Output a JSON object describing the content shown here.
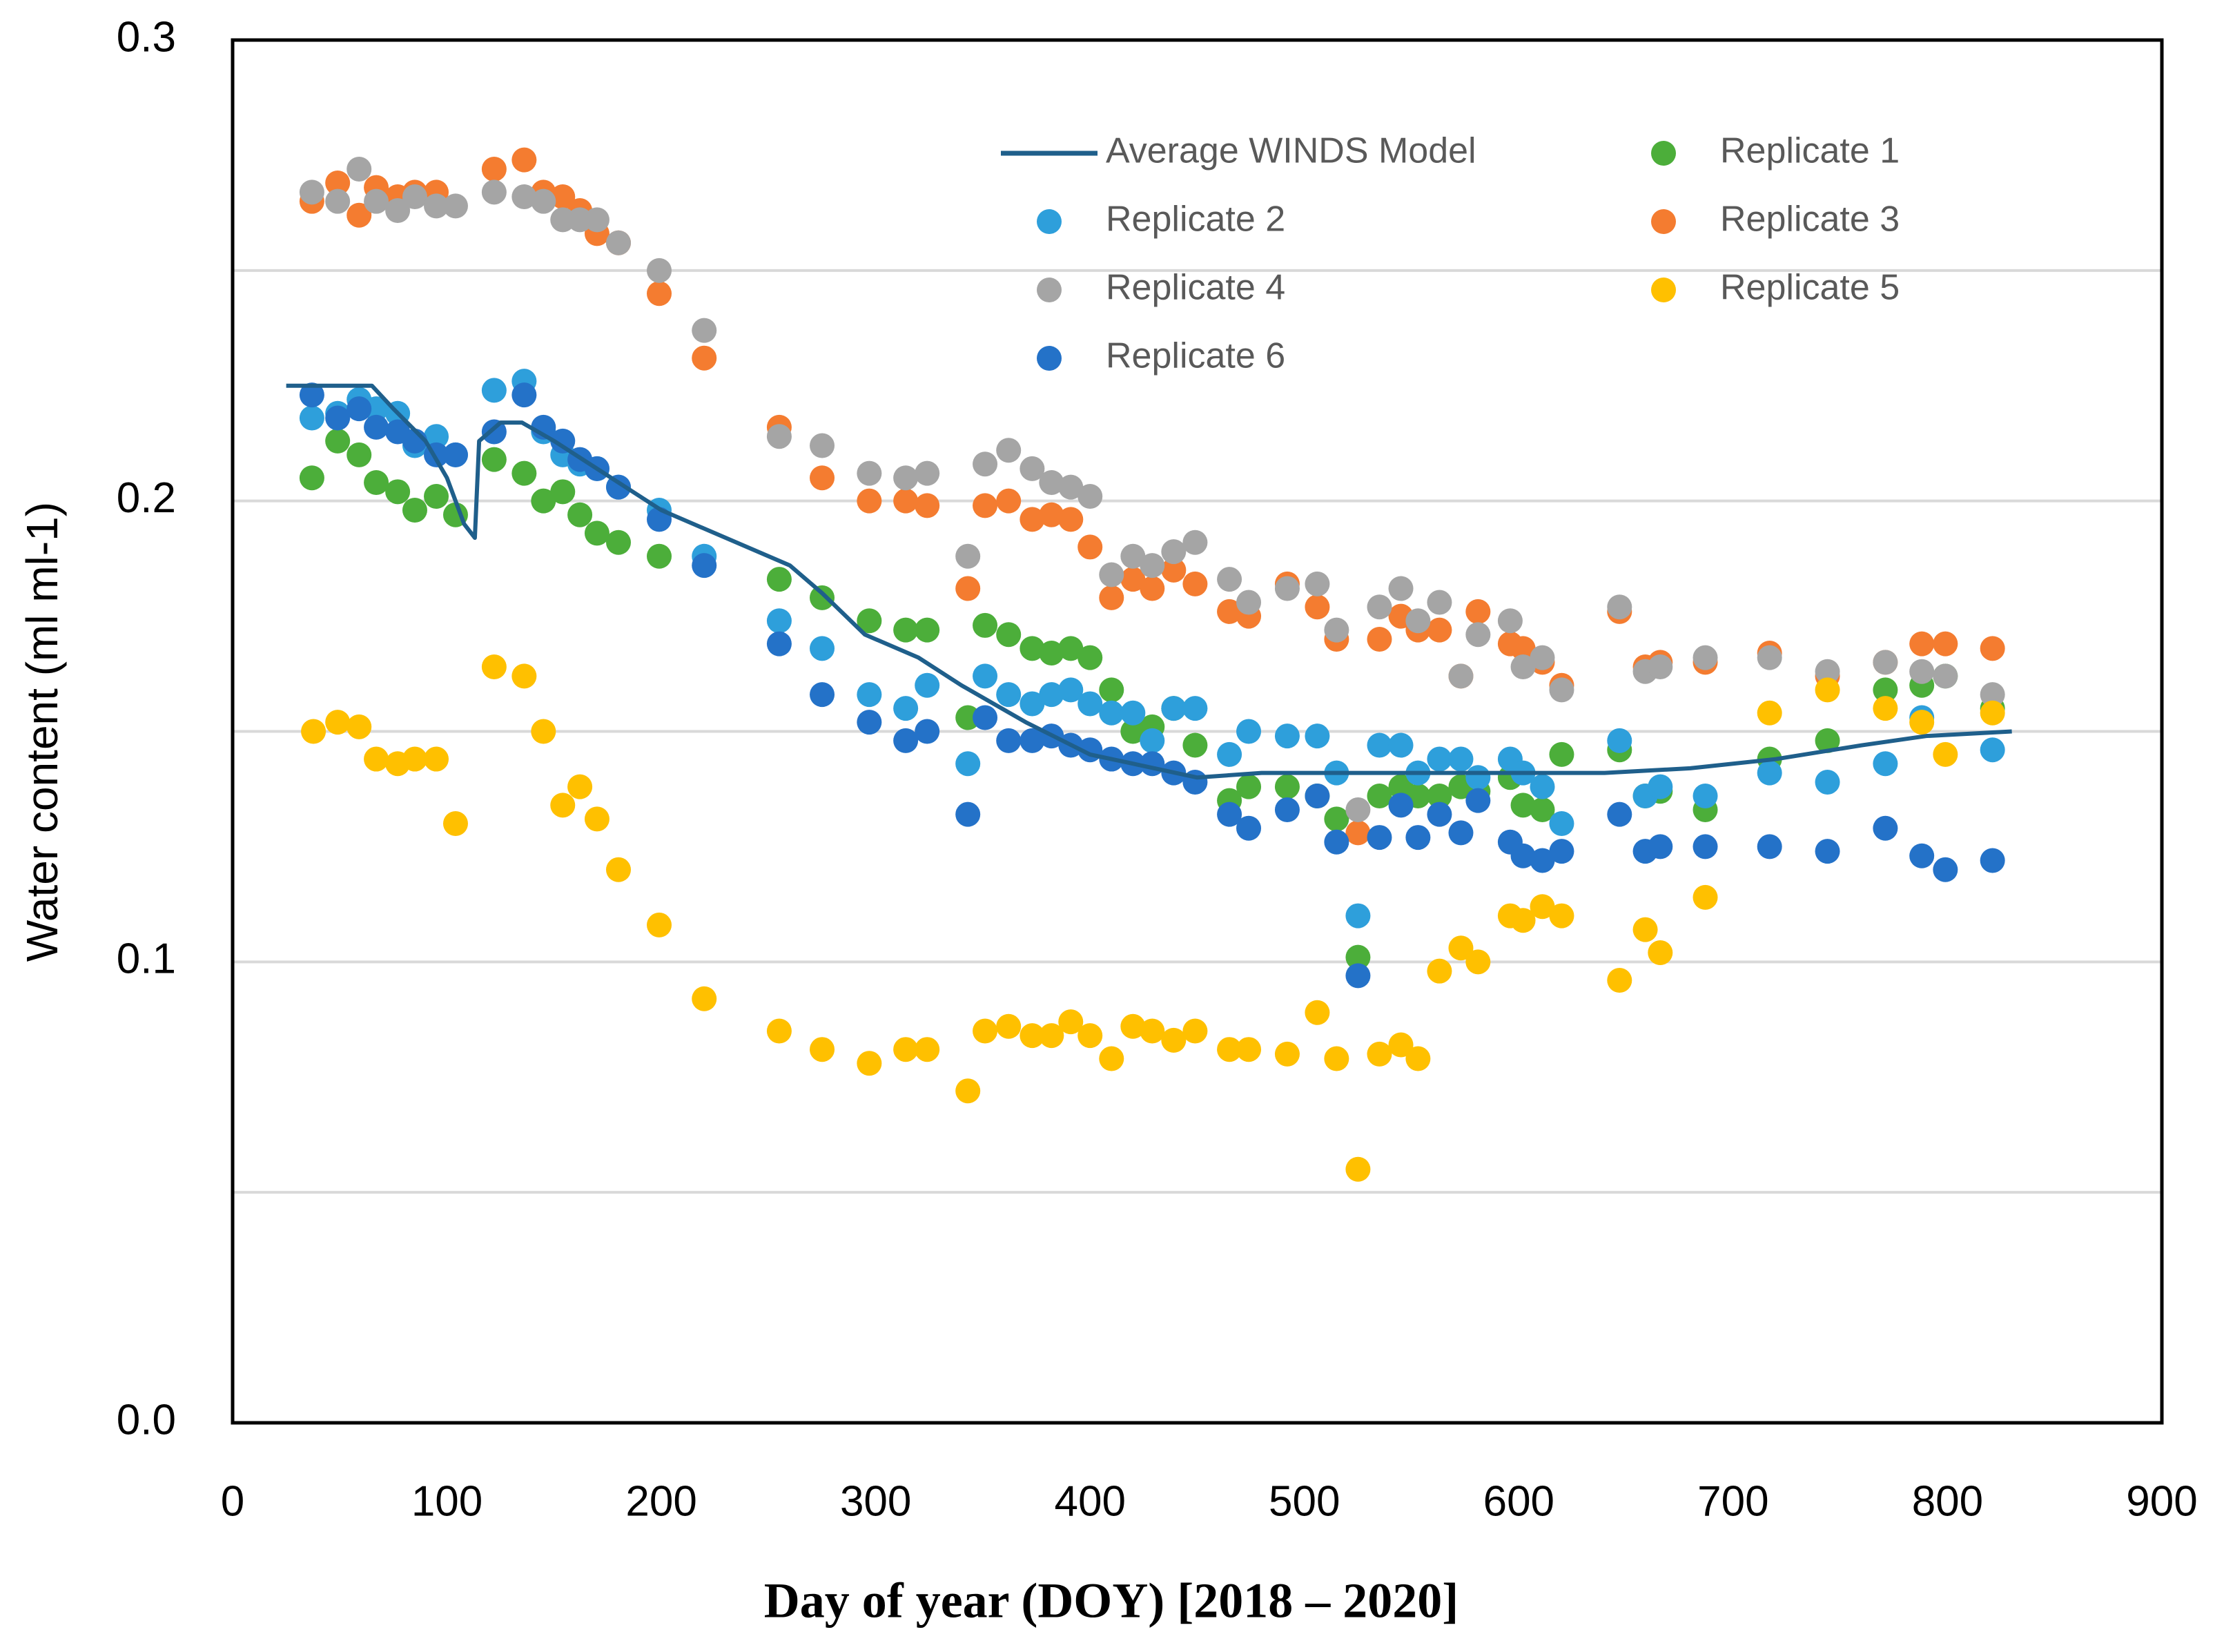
{
  "chart_data": {
    "type": "scatter",
    "xlabel": "Day of year (DOY) [2018 – 2020]",
    "ylabel": "Water content (ml ml-1)",
    "xlim": [
      0,
      900
    ],
    "xticks": [
      0,
      100,
      200,
      300,
      400,
      500,
      600,
      700,
      800,
      900
    ],
    "ylim": [
      0,
      0.3
    ],
    "yticks": [
      {
        "value": 0,
        "label": "0.0"
      },
      0.1,
      0.2,
      0.3
    ],
    "minor_yticks": [
      0.05,
      0.15,
      0.25
    ],
    "grid": true,
    "series": [
      {
        "name": "Average WINDS Model",
        "type": "line",
        "color": "#1f5f8b",
        "x": [
          25,
          65,
          75,
          90,
          100,
          108,
          113,
          115,
          125,
          135,
          150,
          170,
          200,
          225,
          260,
          275,
          295,
          320,
          340,
          370,
          400,
          420,
          450,
          480,
          520,
          580,
          640,
          680,
          720,
          760,
          790,
          830
        ],
        "values": [
          0.225,
          0.225,
          0.22,
          0.213,
          0.205,
          0.195,
          0.192,
          0.213,
          0.217,
          0.217,
          0.213,
          0.207,
          0.198,
          0.193,
          0.186,
          0.18,
          0.171,
          0.166,
          0.16,
          0.152,
          0.145,
          0.143,
          0.14,
          0.141,
          0.141,
          0.141,
          0.141,
          0.142,
          0.144,
          0.147,
          0.149,
          0.15
        ]
      },
      {
        "name": "Replicate 1",
        "type": "scatter",
        "color": "#4cae3a",
        "x": [
          37,
          49,
          59,
          67,
          77,
          85,
          95,
          104,
          122,
          136,
          145,
          154,
          162,
          170,
          180,
          199,
          255,
          275,
          297,
          314,
          324,
          343,
          351,
          362,
          373,
          382,
          391,
          400,
          410,
          420,
          429,
          439,
          449,
          465,
          474,
          492,
          506,
          515,
          525,
          535,
          545,
          553,
          563,
          573,
          581,
          596,
          602,
          611,
          620,
          647,
          659,
          666,
          687,
          717,
          744,
          771,
          788,
          799,
          821
        ],
        "values": [
          0.205,
          0.213,
          0.21,
          0.204,
          0.202,
          0.198,
          0.201,
          0.197,
          0.209,
          0.206,
          0.2,
          0.202,
          0.197,
          0.193,
          0.191,
          0.188,
          0.183,
          0.179,
          0.174,
          0.172,
          0.172,
          0.153,
          0.173,
          0.171,
          0.168,
          0.167,
          0.168,
          0.166,
          0.159,
          0.15,
          0.151,
          0.155,
          0.147,
          0.135,
          0.138,
          0.138,
          0.136,
          0.131,
          0.101,
          0.136,
          0.138,
          0.136,
          0.136,
          0.138,
          0.137,
          0.14,
          0.134,
          0.133,
          0.145,
          0.146,
          0.136,
          0.137,
          0.133,
          0.144,
          0.148,
          0.159,
          0.16,
          0.162,
          0.155
        ]
      },
      {
        "name": "Replicate 2",
        "type": "scatter",
        "color": "#2e9fdb",
        "x": [
          37,
          49,
          59,
          67,
          77,
          85,
          95,
          104,
          122,
          136,
          145,
          154,
          162,
          170,
          180,
          199,
          220,
          255,
          275,
          297,
          314,
          324,
          343,
          351,
          362,
          373,
          382,
          391,
          400,
          410,
          420,
          429,
          439,
          449,
          465,
          474,
          492,
          506,
          515,
          525,
          535,
          545,
          553,
          563,
          573,
          581,
          596,
          602,
          611,
          620,
          647,
          659,
          666,
          687,
          717,
          744,
          771,
          788,
          821
        ],
        "values": [
          0.218,
          0.219,
          0.222,
          0.22,
          0.219,
          0.212,
          0.214,
          0.21,
          0.224,
          0.226,
          0.215,
          0.21,
          0.208,
          0.207,
          0.203,
          0.198,
          0.188,
          0.174,
          0.168,
          0.158,
          0.155,
          0.16,
          0.143,
          0.162,
          0.158,
          0.156,
          0.158,
          0.159,
          0.156,
          0.154,
          0.154,
          0.148,
          0.155,
          0.155,
          0.145,
          0.15,
          0.149,
          0.149,
          0.141,
          0.11,
          0.147,
          0.147,
          0.141,
          0.144,
          0.144,
          0.14,
          0.144,
          0.141,
          0.138,
          0.13,
          0.148,
          0.136,
          0.138,
          0.136,
          0.141,
          0.139,
          0.143,
          0.153,
          0.146
        ]
      },
      {
        "name": "Replicate 3",
        "type": "scatter",
        "color": "#f47c30",
        "x": [
          37,
          49,
          59,
          67,
          77,
          85,
          95,
          122,
          136,
          145,
          154,
          162,
          170,
          180,
          199,
          220,
          255,
          275,
          297,
          314,
          324,
          343,
          351,
          362,
          373,
          382,
          391,
          400,
          410,
          420,
          429,
          439,
          449,
          465,
          474,
          492,
          506,
          515,
          525,
          535,
          545,
          553,
          563,
          573,
          581,
          596,
          602,
          611,
          620,
          647,
          659,
          666,
          687,
          717,
          744,
          771,
          788,
          799,
          821
        ],
        "values": [
          0.265,
          0.269,
          0.262,
          0.268,
          0.266,
          0.267,
          0.267,
          0.272,
          0.274,
          0.267,
          0.266,
          0.263,
          0.258,
          0.256,
          0.245,
          0.231,
          0.216,
          0.205,
          0.2,
          0.2,
          0.199,
          0.181,
          0.199,
          0.2,
          0.196,
          0.197,
          0.196,
          0.19,
          0.179,
          0.183,
          0.181,
          0.185,
          0.182,
          0.176,
          0.175,
          0.182,
          0.177,
          0.17,
          0.128,
          0.17,
          0.175,
          0.172,
          0.172,
          0.162,
          0.176,
          0.169,
          0.168,
          0.165,
          0.16,
          0.176,
          0.164,
          0.165,
          0.165,
          0.167,
          0.162,
          0.165,
          0.169,
          0.169,
          0.168
        ]
      },
      {
        "name": "Replicate 4",
        "type": "scatter",
        "color": "#a5a5a5",
        "x": [
          37,
          49,
          59,
          67,
          77,
          85,
          95,
          104,
          122,
          136,
          145,
          154,
          162,
          170,
          180,
          199,
          220,
          255,
          275,
          297,
          314,
          324,
          343,
          351,
          362,
          373,
          382,
          391,
          400,
          410,
          420,
          429,
          439,
          449,
          465,
          474,
          492,
          506,
          515,
          525,
          535,
          545,
          553,
          563,
          573,
          581,
          596,
          602,
          611,
          620,
          647,
          659,
          666,
          687,
          717,
          744,
          771,
          788,
          799,
          821
        ],
        "values": [
          0.267,
          0.265,
          0.272,
          0.265,
          0.263,
          0.266,
          0.264,
          0.264,
          0.267,
          0.266,
          0.265,
          0.261,
          0.261,
          0.261,
          0.256,
          0.25,
          0.237,
          0.214,
          0.212,
          0.206,
          0.205,
          0.206,
          0.188,
          0.208,
          0.211,
          0.207,
          0.204,
          0.203,
          0.201,
          0.184,
          0.188,
          0.186,
          0.189,
          0.191,
          0.183,
          0.178,
          0.181,
          0.182,
          0.172,
          0.133,
          0.177,
          0.181,
          0.174,
          0.178,
          0.162,
          0.171,
          0.174,
          0.164,
          0.166,
          0.159,
          0.177,
          0.163,
          0.164,
          0.166,
          0.166,
          0.163,
          0.165,
          0.163,
          0.162,
          0.158
        ]
      },
      {
        "name": "Replicate 5",
        "type": "scatter",
        "color": "#ffc000",
        "x": [
          37.7,
          49,
          59,
          67,
          77,
          85,
          95,
          104,
          122,
          136,
          145,
          154,
          162,
          170,
          180,
          199,
          220,
          255,
          275,
          297,
          314,
          324,
          343,
          351,
          362,
          373,
          382,
          391,
          400,
          410,
          420,
          429,
          439,
          449,
          465,
          474,
          492,
          506,
          515,
          525,
          535,
          545,
          553,
          563,
          573,
          581,
          596,
          602,
          611,
          620,
          647,
          659,
          666,
          687,
          717,
          744,
          771,
          788,
          799,
          821
        ],
        "values": [
          0.15,
          0.152,
          0.151,
          0.144,
          0.143,
          0.144,
          0.144,
          0.13,
          0.164,
          0.162,
          0.15,
          0.134,
          0.138,
          0.131,
          0.12,
          0.108,
          0.092,
          0.085,
          0.081,
          0.078,
          0.081,
          0.081,
          0.072,
          0.085,
          0.086,
          0.084,
          0.084,
          0.087,
          0.084,
          0.079,
          0.086,
          0.085,
          0.083,
          0.085,
          0.081,
          0.081,
          0.08,
          0.089,
          0.079,
          0.055,
          0.08,
          0.082,
          0.079,
          0.098,
          0.103,
          0.1,
          0.11,
          0.109,
          0.112,
          0.11,
          0.096,
          0.107,
          0.102,
          0.114,
          0.154,
          0.159,
          0.155,
          0.152,
          0.145,
          0.154
        ]
      },
      {
        "name": "Replicate 6",
        "type": "scatter",
        "color": "#2472c8",
        "x": [
          37,
          49,
          59,
          67,
          77,
          85,
          95,
          104,
          122,
          136,
          145,
          154,
          162,
          170,
          180,
          199,
          220,
          255,
          275,
          297,
          314,
          324,
          343,
          351,
          362,
          373,
          382,
          391,
          400,
          410,
          420,
          429,
          439,
          449,
          465,
          474,
          492,
          506,
          515,
          525,
          535,
          545,
          553,
          563,
          573,
          581,
          596,
          602,
          611,
          620,
          647,
          659,
          666,
          687,
          717,
          744,
          771,
          788,
          799,
          821
        ],
        "values": [
          0.223,
          0.218,
          0.22,
          0.216,
          0.215,
          0.213,
          0.21,
          0.21,
          0.215,
          0.223,
          0.216,
          0.213,
          0.209,
          0.207,
          0.203,
          0.196,
          0.186,
          0.169,
          0.158,
          0.152,
          0.148,
          0.15,
          0.132,
          0.153,
          0.148,
          0.148,
          0.149,
          0.147,
          0.146,
          0.144,
          0.143,
          0.143,
          0.141,
          0.139,
          0.132,
          0.129,
          0.133,
          0.136,
          0.126,
          0.097,
          0.127,
          0.134,
          0.127,
          0.132,
          0.128,
          0.135,
          0.126,
          0.123,
          0.122,
          0.124,
          0.132,
          0.124,
          0.125,
          0.125,
          0.125,
          0.124,
          0.129,
          0.123,
          0.12,
          0.122
        ]
      }
    ]
  }
}
